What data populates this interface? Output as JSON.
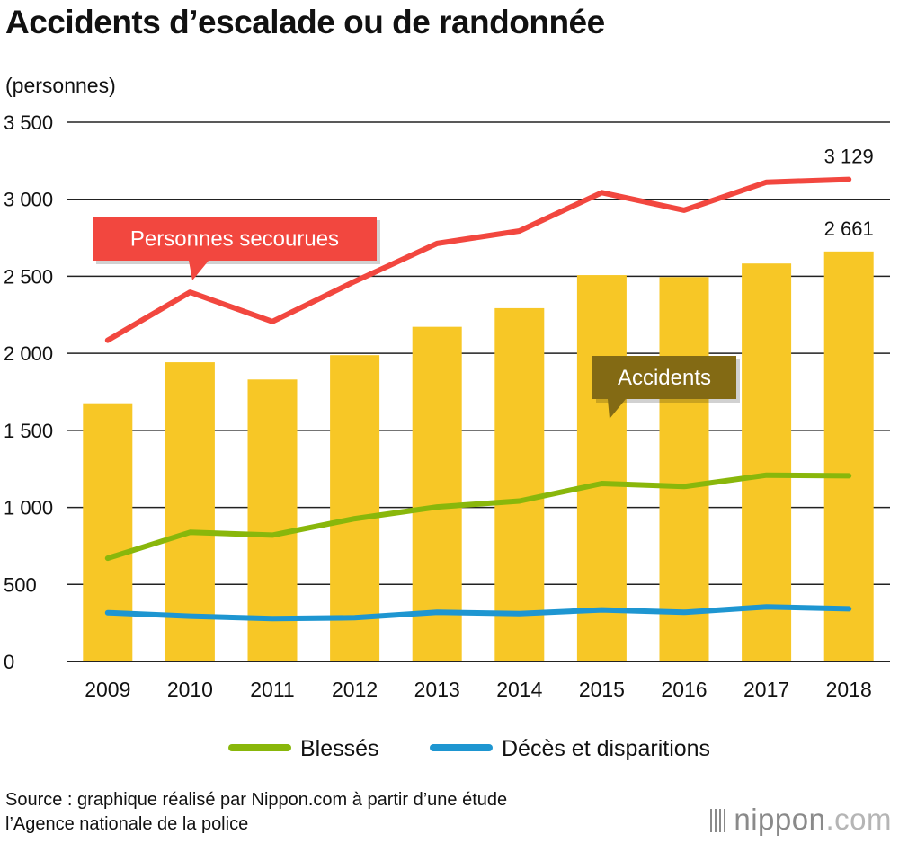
{
  "chart_data": {
    "type": "bar+line",
    "title": "Accidents d’escalade ou de randonnée",
    "ylabel": "(personnes)",
    "ylim": [
      0,
      3500
    ],
    "yticks": [
      0,
      500,
      1000,
      1500,
      2000,
      2500,
      3000,
      3500
    ],
    "ytick_labels": [
      "0",
      "500",
      "1 000",
      "1 500",
      "2 000",
      "2 500",
      "3 000",
      "3 500"
    ],
    "categories": [
      "2009",
      "2010",
      "2011",
      "2012",
      "2013",
      "2014",
      "2015",
      "2016",
      "2017",
      "2018"
    ],
    "grid": "horizontal",
    "legend_position": "bottom",
    "bars": {
      "name": "Accidents",
      "color": "#f7c726",
      "values": [
        1676,
        1942,
        1830,
        1988,
        2172,
        2293,
        2508,
        2495,
        2583,
        2661
      ]
    },
    "series": [
      {
        "name": "Personnes secourues",
        "color": "#f2473f",
        "values": [
          2085,
          2397,
          2206,
          2467,
          2713,
          2794,
          3043,
          2929,
          3111,
          3129
        ]
      },
      {
        "name": "Blessés",
        "color": "#89b70b",
        "values": [
          670,
          838,
          820,
          927,
          1003,
          1041,
          1155,
          1136,
          1209,
          1205
        ]
      },
      {
        "name": "Décès et disparitions",
        "color": "#1e96d1",
        "values": [
          317,
          294,
          278,
          284,
          319,
          311,
          335,
          319,
          354,
          342
        ]
      }
    ],
    "data_labels": [
      {
        "series": "Personnes secourues",
        "category": "2018",
        "text": "3 129"
      },
      {
        "series": "Accidents",
        "category": "2018",
        "text": "2 661"
      }
    ],
    "callouts": [
      {
        "series": "Personnes secourues",
        "text": "Personnes secourues",
        "bg": "#f2473f"
      },
      {
        "series": "Accidents",
        "text": "Accidents",
        "bg": "#836a14"
      }
    ],
    "legend": [
      "Blessés",
      "Décès et disparitions"
    ]
  },
  "source": {
    "line1": "Source : graphique réalisé par Nippon.com à partir d’une étude",
    "line2": "l’Agence nationale de la police"
  },
  "brand": {
    "name": "nippon",
    "suffix": ".com"
  }
}
